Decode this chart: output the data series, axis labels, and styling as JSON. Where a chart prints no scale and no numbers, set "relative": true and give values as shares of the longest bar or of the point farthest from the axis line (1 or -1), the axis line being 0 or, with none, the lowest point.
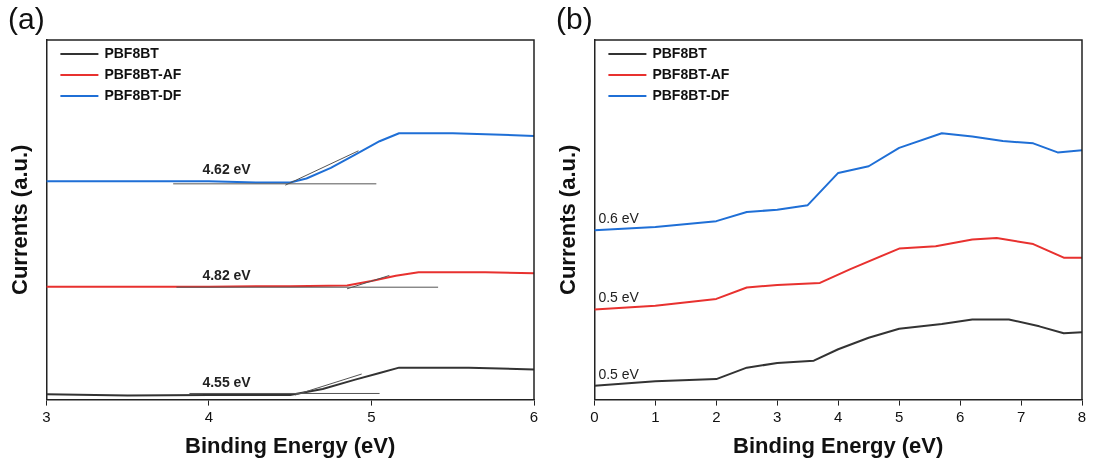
{
  "chart_data": [
    {
      "type": "line",
      "title": "(a)",
      "xlabel": "Binding Energy (eV)",
      "ylabel": "Currents (a.u.)",
      "relative": true,
      "xlim": [
        3,
        6
      ],
      "xticks": [
        3,
        4,
        5,
        6
      ],
      "legend": "top left",
      "grid": false,
      "marker": "none",
      "line_style": "solid",
      "annotations": [
        "4.62 eV",
        "4.82 eV",
        "4.55 eV"
      ],
      "series": [
        {
          "name": "PBF8BT",
          "color": "#333333",
          "x": [
            3,
            3.5,
            4,
            4.5,
            4.7,
            4.9,
            5.05,
            5.17,
            5.6,
            6
          ],
          "values": [
            0.02,
            0.015,
            0.017,
            0.017,
            0.04,
            0.075,
            0.1,
            0.12,
            0.12,
            0.113
          ]
        },
        {
          "name": "PBF8BT-AF",
          "color": "#e8312f",
          "x": [
            3,
            4,
            4.5,
            4.85,
            5.0,
            5.15,
            5.29,
            5.7,
            6
          ],
          "values": [
            0.424,
            0.424,
            0.426,
            0.428,
            0.445,
            0.465,
            0.478,
            0.478,
            0.474
          ]
        },
        {
          "name": "PBF8BT-DF",
          "color": "#1f6fd6",
          "x": [
            3,
            3.5,
            4,
            4.3,
            4.5,
            4.6,
            4.75,
            4.9,
            5.05,
            5.17,
            5.5,
            6
          ],
          "values": [
            0.82,
            0.82,
            0.82,
            0.815,
            0.815,
            0.83,
            0.87,
            0.92,
            0.97,
            1.0,
            1.0,
            0.99
          ]
        },
        {
          "type": "line",
          "color": "#555555",
          "x": [
            3.88,
            5.05
          ],
          "values": [
            0.023,
            0.023
          ]
        },
        {
          "type": "line",
          "color": "#555555",
          "x": [
            4.53,
            4.94
          ],
          "values": [
            0.017,
            0.096
          ]
        },
        {
          "type": "line",
          "color": "#555555",
          "x": [
            3.8,
            5.41
          ],
          "values": [
            0.422,
            0.422
          ]
        },
        {
          "type": "line",
          "color": "#555555",
          "x": [
            4.85,
            5.11
          ],
          "values": [
            0.416,
            0.466
          ]
        },
        {
          "type": "line",
          "color": "#555555",
          "x": [
            3.78,
            5.03
          ],
          "values": [
            0.81,
            0.81
          ]
        },
        {
          "type": "line",
          "color": "#555555",
          "x": [
            4.47,
            4.92
          ],
          "values": [
            0.805,
            0.934
          ]
        }
      ]
    },
    {
      "type": "line",
      "title": "(b)",
      "xlabel": "Binding Energy (eV)",
      "ylabel": "Currents (a.u.)",
      "relative": true,
      "xlim": [
        0,
        8
      ],
      "xticks": [
        0,
        1,
        2,
        3,
        4,
        5,
        6,
        7,
        8
      ],
      "legend": "top left",
      "grid": false,
      "marker": "none",
      "line_style": "solid",
      "annotations": [
        "0.6 eV",
        "0.5 eV",
        "0.5 eV"
      ],
      "series": [
        {
          "name": "PBF8BT",
          "color": "#333333",
          "x": [
            0,
            1,
            2,
            2.5,
            3,
            3.6,
            4,
            4.5,
            5,
            5.7,
            6.2,
            6.8,
            7.3,
            7.7,
            8
          ],
          "values": [
            0.052,
            0.069,
            0.077,
            0.12,
            0.137,
            0.146,
            0.189,
            0.232,
            0.266,
            0.284,
            0.301,
            0.301,
            0.275,
            0.249,
            0.253
          ]
        },
        {
          "name": "PBF8BT-AF",
          "color": "#e8312f",
          "x": [
            0,
            1,
            2,
            2.5,
            3,
            3.7,
            4.2,
            5,
            5.6,
            6.2,
            6.6,
            7.2,
            7.7,
            8
          ],
          "values": [
            0.338,
            0.352,
            0.378,
            0.421,
            0.43,
            0.438,
            0.49,
            0.567,
            0.576,
            0.601,
            0.607,
            0.584,
            0.533,
            0.533
          ]
        },
        {
          "name": "PBF8BT-DF",
          "color": "#1f6fd6",
          "x": [
            0,
            1,
            2,
            2.5,
            3,
            3.5,
            4,
            4.5,
            5,
            5.7,
            6.2,
            6.7,
            7.2,
            7.6,
            8
          ],
          "values": [
            0.636,
            0.648,
            0.67,
            0.704,
            0.713,
            0.73,
            0.851,
            0.876,
            0.945,
            1.0,
            0.988,
            0.971,
            0.962,
            0.928,
            0.936
          ]
        }
      ]
    }
  ]
}
